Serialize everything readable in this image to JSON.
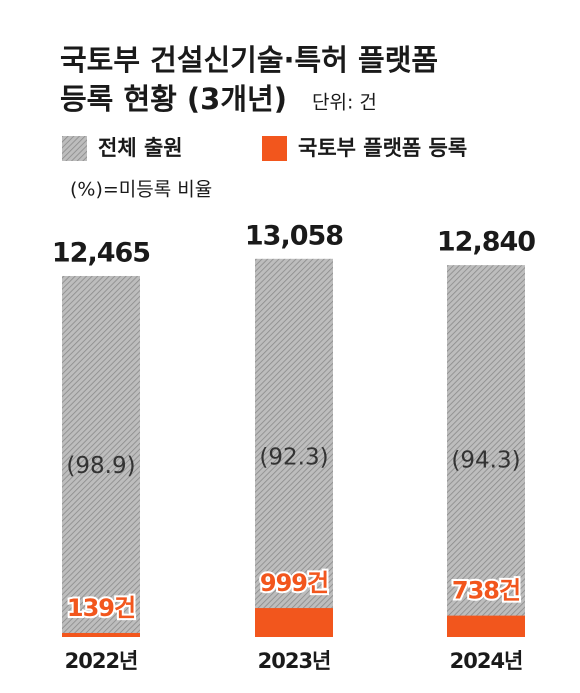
{
  "chart_data": {
    "type": "overlap_bar",
    "title": [
      "국토부 건설신기술·특허 플랫폼",
      "등록 현황 (3개년)"
    ],
    "unit": "단위: 건",
    "note": "(%)=미등록 비율",
    "categories": [
      "2022년",
      "2023년",
      "2024년"
    ],
    "series": [
      {
        "name": "전체 출원",
        "color": "#a9a9a9",
        "values": [
          12465,
          13058,
          12840
        ],
        "value_labels": [
          "12,465",
          "13,058",
          "12,840"
        ]
      },
      {
        "name": "국토부 플랫폼 등록",
        "color": "#f2561d",
        "values": [
          139,
          999,
          738
        ],
        "value_labels": [
          "139건",
          "999건",
          "738건"
        ]
      }
    ],
    "unregistered_ratio": {
      "values": [
        98.9,
        92.3,
        94.3
      ],
      "value_labels": [
        "(98.9)",
        "(92.3)",
        "(94.3)"
      ]
    },
    "ylim": [
      0,
      13500
    ]
  }
}
